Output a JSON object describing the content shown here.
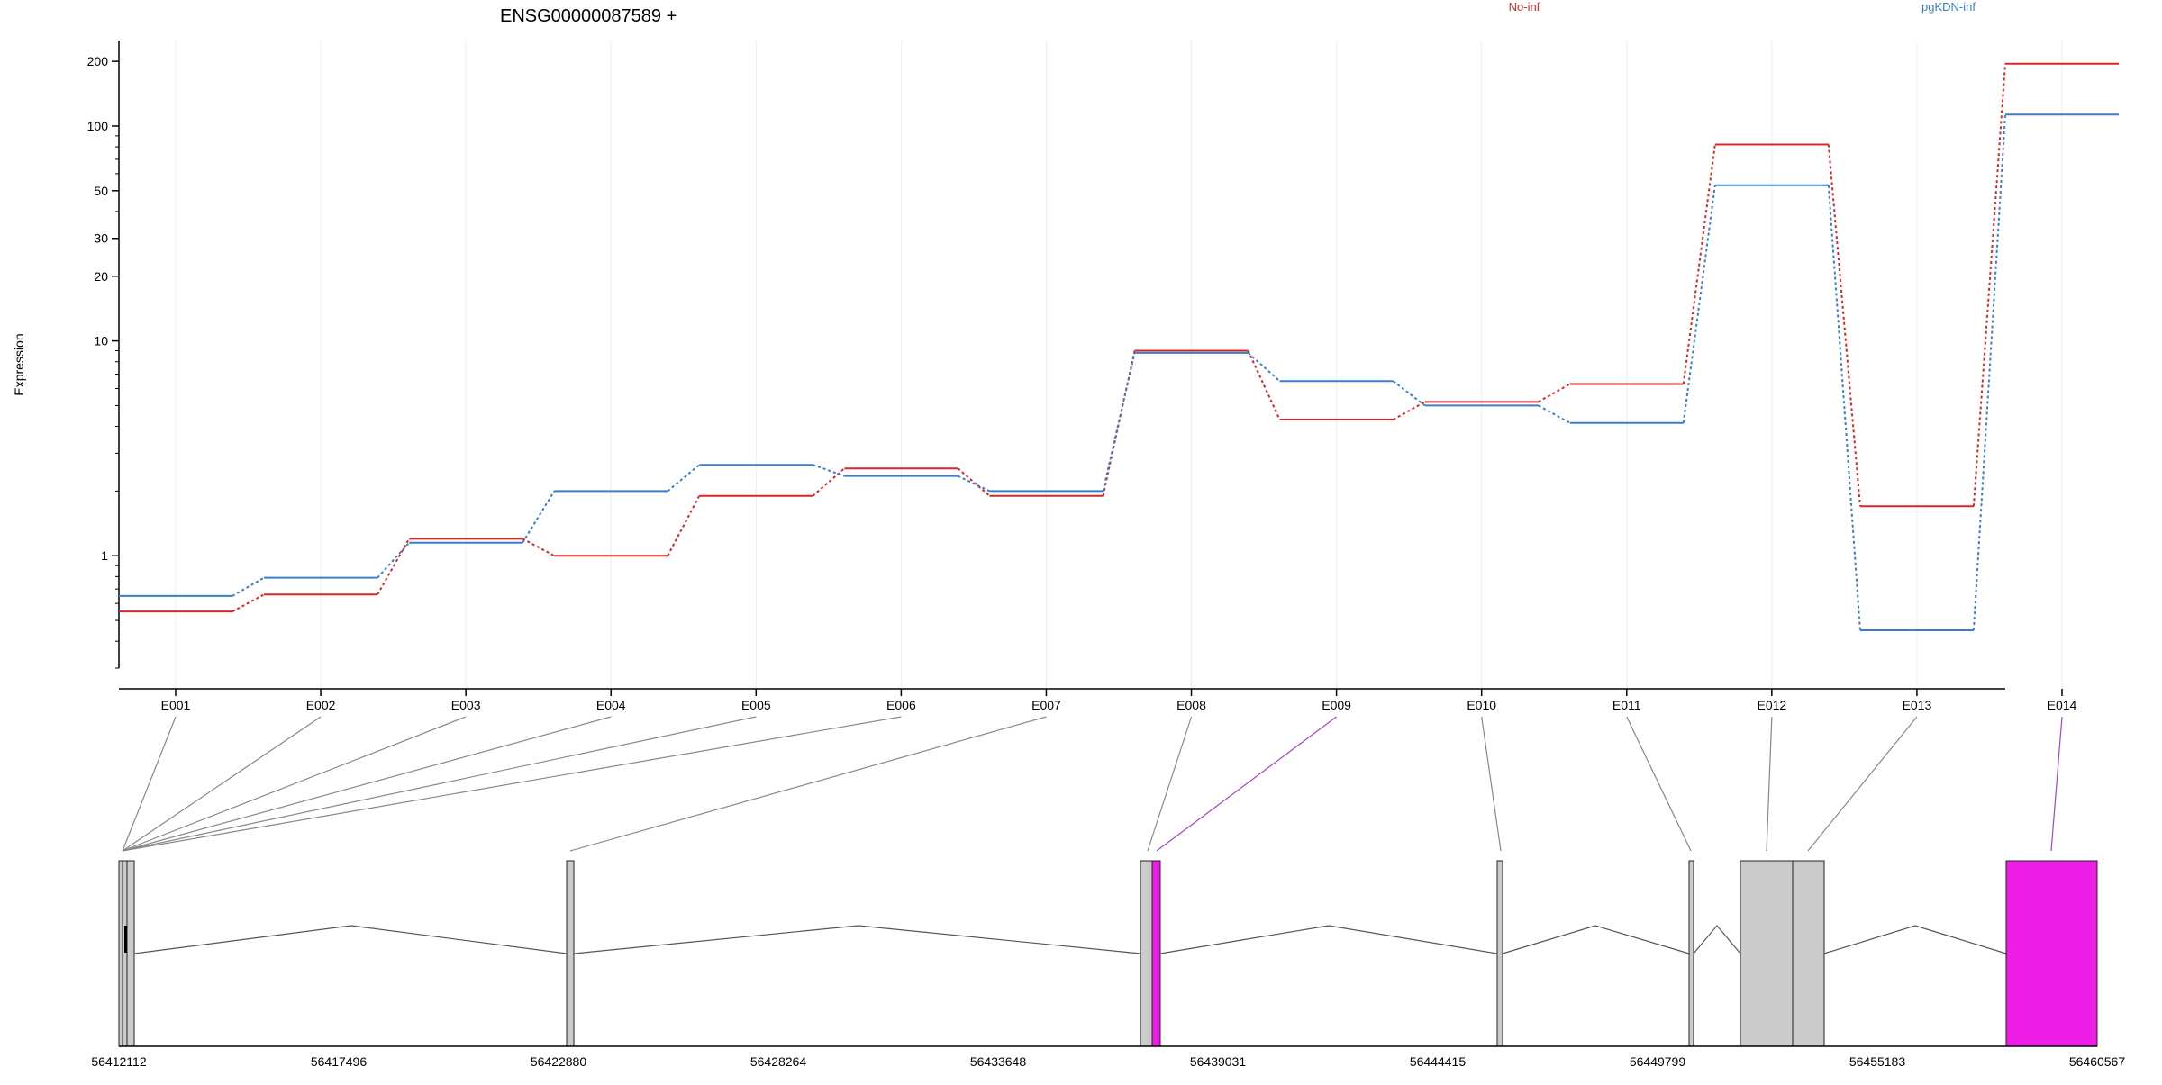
{
  "title": "ENSG00000087589 +",
  "colors": {
    "no_inf": "#d62728",
    "pgkdn_inf": "#3a7dc9",
    "highlight": "#ee1de6",
    "exon_box": "#cccccc"
  },
  "chart_data": {
    "type": "line",
    "title": "ENSG00000087589 +",
    "ylabel": "Expression",
    "xlabel": "",
    "yscale": "log",
    "ylim": [
      0.3,
      250
    ],
    "y_ticks": [
      1,
      10,
      20,
      30,
      50,
      100,
      200
    ],
    "y_tick_labels": [
      "1",
      "10",
      "20",
      "30",
      "50",
      "100",
      "200"
    ],
    "grid": "vertical",
    "legend_position": "top-right",
    "categories": [
      "E001",
      "E002",
      "E003",
      "E004",
      "E005",
      "E006",
      "E007",
      "E008",
      "E009",
      "E010",
      "E011",
      "E012",
      "E013",
      "E014"
    ],
    "series": [
      {
        "name": "No-inf",
        "color": "#d62728",
        "values": [
          0.55,
          0.66,
          1.2,
          1.0,
          1.9,
          2.55,
          1.9,
          9.0,
          4.3,
          5.2,
          6.3,
          82,
          1.7,
          195
        ]
      },
      {
        "name": "pgKDN-inf",
        "color": "#3a7dc9",
        "values": [
          0.65,
          0.79,
          1.15,
          2.0,
          2.65,
          2.35,
          2.0,
          8.8,
          6.5,
          5.0,
          4.15,
          53,
          0.45,
          113
        ]
      }
    ],
    "gene_model": {
      "coordinate_labels": [
        "56412112",
        "56417496",
        "56422880",
        "56428264",
        "56433648",
        "56439031",
        "56444415",
        "56449799",
        "56455183",
        "56460567"
      ],
      "coord_start": 56412112,
      "coord_end": 56460567,
      "highlighted_exons": [
        "E009",
        "E014"
      ]
    }
  }
}
